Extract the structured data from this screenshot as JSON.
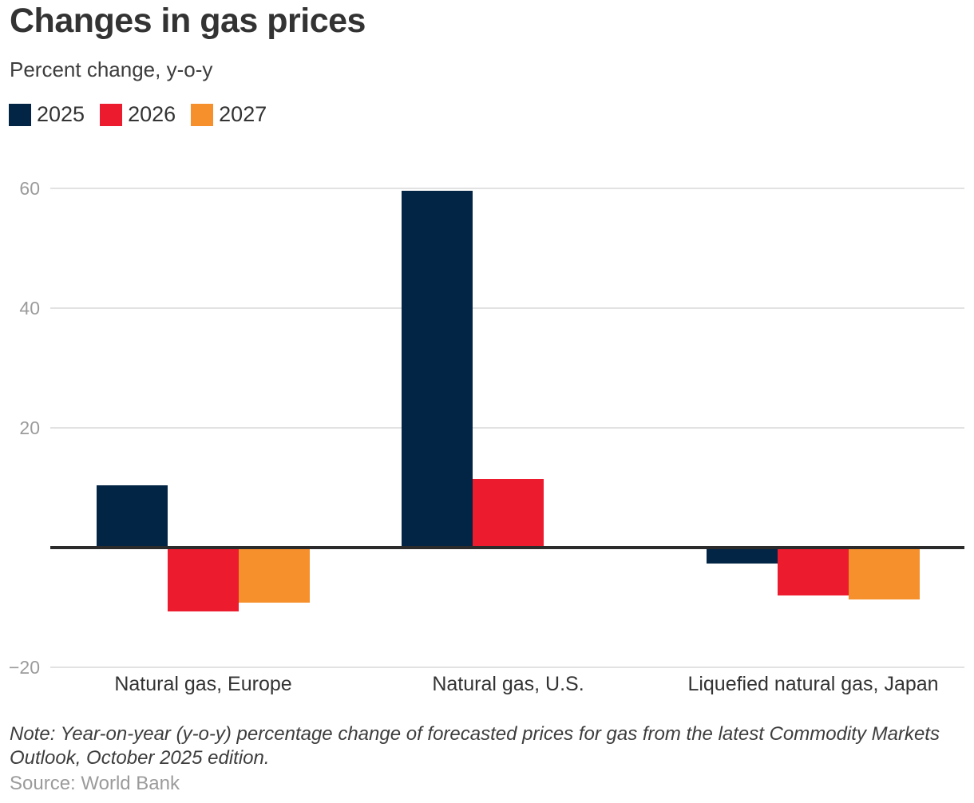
{
  "header": {
    "title": "Changes in gas prices",
    "subtitle": "Percent change, y-o-y"
  },
  "legend": [
    {
      "label": "2025",
      "color": "#032545"
    },
    {
      "label": "2026",
      "color": "#ec1b2d"
    },
    {
      "label": "2027",
      "color": "#f6902c"
    }
  ],
  "chart_data": {
    "type": "bar",
    "title": "Changes in gas prices",
    "subtitle": "Percent change, y-o-y",
    "categories": [
      "Natural gas, Europe",
      "Natural gas, U.S.",
      "Liquefied natural gas, Japan"
    ],
    "series": [
      {
        "name": "2025",
        "color": "#032545",
        "values": [
          10.3,
          59.6,
          -2.7
        ]
      },
      {
        "name": "2026",
        "color": "#ec1b2d",
        "values": [
          -10.7,
          11.4,
          -8.0
        ]
      },
      {
        "name": "2027",
        "color": "#f6902c",
        "values": [
          -9.2,
          0,
          -8.7
        ]
      }
    ],
    "ylabel": "Percent change, y-o-y",
    "ylim": [
      -20,
      60
    ],
    "yticks": [
      60,
      40,
      20,
      -20
    ],
    "ytick_labels": [
      "60",
      "40",
      "20",
      "−20"
    ],
    "baseline": 0,
    "grid": true,
    "legend_position": "top-left",
    "colors": {
      "gridline": "#e2e2e2",
      "zero_line": "#2b2b2b",
      "tick_text": "#9b9b9b",
      "label_text": "#333333"
    }
  },
  "footer": {
    "note": "Note: Year-on-year (y-o-y) percentage change of forecasted prices for gas from the latest Commodity Markets Outlook, October 2025 edition.",
    "source": "Source: World Bank"
  }
}
